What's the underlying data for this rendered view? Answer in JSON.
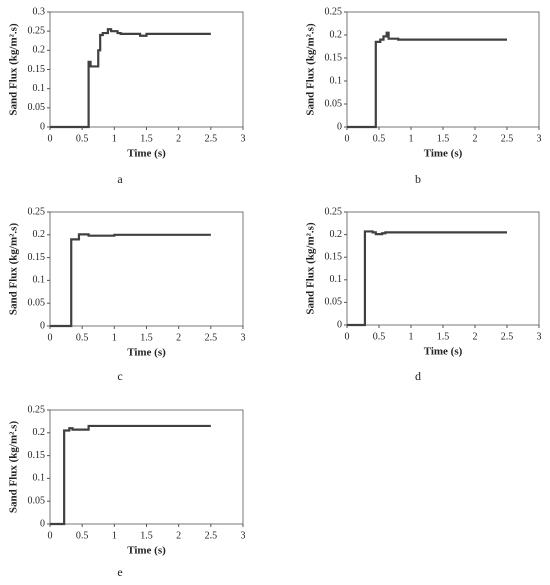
{
  "chart_data": [
    {
      "type": "line",
      "label": "a",
      "x_label": "Time (s)",
      "y_label": "Sand Flux (kg/m².s)",
      "x": [
        0,
        0.6,
        0.6,
        0.63,
        0.63,
        0.75,
        0.75,
        0.78,
        0.78,
        0.82,
        0.82,
        0.9,
        0.9,
        0.95,
        0.95,
        1.05,
        1.05,
        1.1,
        1.1,
        1.4,
        1.4,
        1.5,
        1.5,
        2.5
      ],
      "series": [
        {
          "name": null,
          "color": "#404040",
          "values": [
            0,
            0,
            0.17,
            0.17,
            0.158,
            0.158,
            0.2,
            0.2,
            0.24,
            0.24,
            0.245,
            0.245,
            0.255,
            0.255,
            0.25,
            0.25,
            0.245,
            0.245,
            0.243,
            0.243,
            0.238,
            0.238,
            0.243,
            0.243
          ]
        }
      ],
      "xlim": [
        0,
        3
      ],
      "xticks": [
        0,
        0.5,
        1,
        1.5,
        2,
        2.5,
        3
      ],
      "ylim": [
        0,
        0.3
      ],
      "yticks": [
        0,
        0.05,
        0.1,
        0.15,
        0.2,
        0.25,
        0.3
      ],
      "grid": false
    },
    {
      "type": "line",
      "label": "b",
      "x_label": "Time (s)",
      "y_label": "Sand Flux (kg/m².s)",
      "x": [
        0,
        0.45,
        0.45,
        0.52,
        0.52,
        0.57,
        0.57,
        0.62,
        0.62,
        0.65,
        0.65,
        0.8,
        0.8,
        2.5
      ],
      "series": [
        {
          "name": null,
          "color": "#404040",
          "values": [
            0,
            0,
            0.185,
            0.185,
            0.19,
            0.19,
            0.197,
            0.197,
            0.205,
            0.205,
            0.192,
            0.192,
            0.19,
            0.19
          ]
        }
      ],
      "xlim": [
        0,
        3
      ],
      "xticks": [
        0,
        0.5,
        1,
        1.5,
        2,
        2.5,
        3
      ],
      "ylim": [
        0,
        0.25
      ],
      "yticks": [
        0,
        0.05,
        0.1,
        0.15,
        0.2,
        0.25
      ],
      "grid": false
    },
    {
      "type": "line",
      "label": "c",
      "x_label": "Time (s)",
      "y_label": "Sand Flux (kg/m².s)",
      "x": [
        0,
        0.33,
        0.33,
        0.4,
        0.4,
        0.45,
        0.45,
        0.6,
        0.6,
        1.0,
        1.0,
        2.5
      ],
      "series": [
        {
          "name": null,
          "color": "#404040",
          "values": [
            0,
            0,
            0.19,
            0.19,
            0.19,
            0.19,
            0.201,
            0.201,
            0.198,
            0.198,
            0.2,
            0.2
          ]
        }
      ],
      "xlim": [
        0,
        3
      ],
      "xticks": [
        0,
        0.5,
        1,
        1.5,
        2,
        2.5,
        3
      ],
      "ylim": [
        0,
        0.25
      ],
      "yticks": [
        0,
        0.05,
        0.1,
        0.15,
        0.2,
        0.25
      ],
      "grid": false
    },
    {
      "type": "line",
      "label": "d",
      "x_label": "Time (s)",
      "y_label": "Sand Flux (kg/m².s)",
      "x": [
        0,
        0.28,
        0.28,
        0.4,
        0.4,
        0.45,
        0.45,
        0.55,
        0.55,
        0.6,
        0.6,
        2.5
      ],
      "series": [
        {
          "name": null,
          "color": "#404040",
          "values": [
            0,
            0,
            0.207,
            0.207,
            0.205,
            0.205,
            0.201,
            0.201,
            0.203,
            0.203,
            0.205,
            0.205
          ]
        }
      ],
      "xlim": [
        0,
        3
      ],
      "xticks": [
        0,
        0.5,
        1,
        1.5,
        2,
        2.5,
        3
      ],
      "ylim": [
        0,
        0.25
      ],
      "yticks": [
        0,
        0.05,
        0.1,
        0.15,
        0.2,
        0.25
      ],
      "grid": false
    },
    {
      "type": "line",
      "label": "e",
      "x_label": "Time (s)",
      "y_label": "Sand Flux (kg/m².s)",
      "x": [
        0,
        0.22,
        0.22,
        0.3,
        0.3,
        0.35,
        0.35,
        0.6,
        0.6,
        2.5
      ],
      "series": [
        {
          "name": null,
          "color": "#404040",
          "values": [
            0,
            0,
            0.205,
            0.205,
            0.21,
            0.21,
            0.207,
            0.207,
            0.215,
            0.215
          ]
        }
      ],
      "xlim": [
        0,
        3
      ],
      "xticks": [
        0,
        0.5,
        1,
        1.5,
        2,
        2.5,
        3
      ],
      "ylim": [
        0,
        0.25
      ],
      "yticks": [
        0,
        0.05,
        0.1,
        0.15,
        0.2,
        0.25
      ],
      "grid": false
    }
  ]
}
